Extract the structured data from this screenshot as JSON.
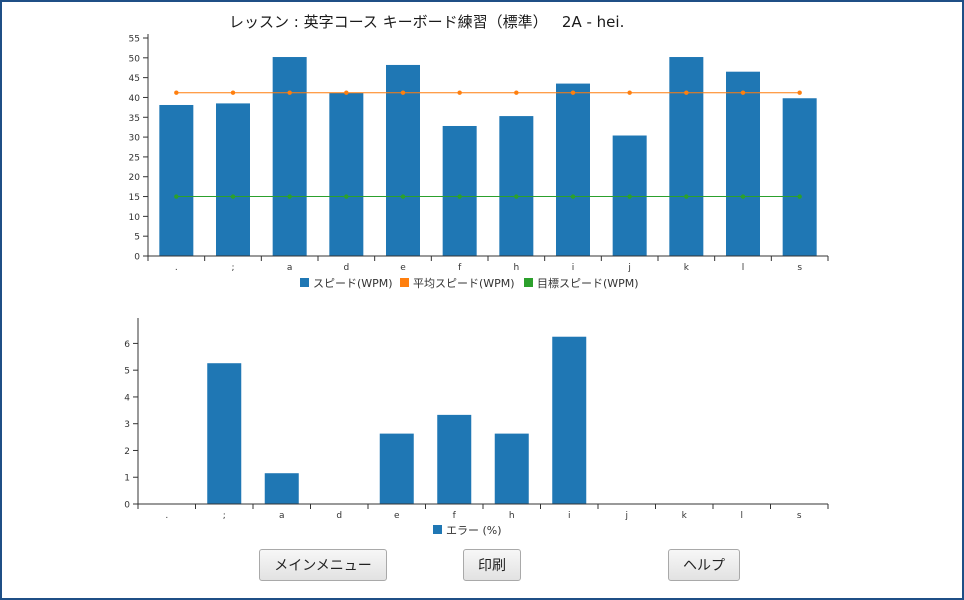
{
  "window": {
    "title": "レッスン : 英字コース キーボード練習（標準）   2A - hei."
  },
  "buttons": {
    "main_menu": "メインメニュー",
    "print": "印刷",
    "help": "ヘルプ"
  },
  "chart_data": [
    {
      "type": "bar",
      "categories": [
        ".",
        ";",
        "a",
        "d",
        "e",
        "f",
        "h",
        "i",
        "j",
        "k",
        "l",
        "s"
      ],
      "series": [
        {
          "name": "スピード(WPM)",
          "type": "bar",
          "color": "#1f77b4",
          "values": [
            38.1,
            38.5,
            50.2,
            41.2,
            48.2,
            32.8,
            35.3,
            43.5,
            30.4,
            50.2,
            46.5,
            39.8
          ]
        },
        {
          "name": "平均スピード(WPM)",
          "type": "line",
          "color": "#ff7f0e",
          "values": [
            41.2,
            41.2,
            41.2,
            41.2,
            41.2,
            41.2,
            41.2,
            41.2,
            41.2,
            41.2,
            41.2,
            41.2
          ]
        },
        {
          "name": "目標スピード(WPM)",
          "type": "line",
          "color": "#2ca02c",
          "values": [
            15,
            15,
            15,
            15,
            15,
            15,
            15,
            15,
            15,
            15,
            15,
            15
          ]
        }
      ],
      "yticks": [
        "0",
        "5",
        "10",
        "15",
        "20",
        "25",
        "30",
        "35",
        "40",
        "45",
        "50",
        "55"
      ],
      "ylim": [
        0,
        55
      ],
      "legend_position": "bottom",
      "grid": false
    },
    {
      "type": "bar",
      "categories": [
        ".",
        ";",
        "a",
        "d",
        "e",
        "f",
        "h",
        "i",
        "j",
        "k",
        "l",
        "s"
      ],
      "series": [
        {
          "name": "エラー (%)",
          "type": "bar",
          "color": "#1f77b4",
          "values": [
            0,
            5.26,
            1.15,
            0,
            2.63,
            3.33,
            2.63,
            6.25,
            0,
            0,
            0,
            0
          ]
        }
      ],
      "yticks": [
        "0",
        "1",
        "2",
        "3",
        "4",
        "5",
        "6"
      ],
      "ylim": [
        0,
        6.8
      ],
      "legend_position": "bottom",
      "grid": false
    }
  ]
}
